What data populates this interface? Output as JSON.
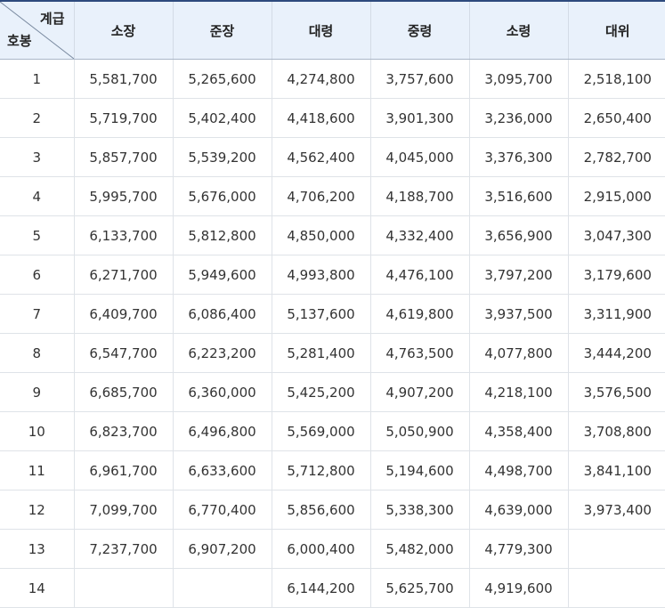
{
  "table": {
    "corner_top": "계급",
    "corner_bottom": "호봉",
    "columns": [
      "소장",
      "준장",
      "대령",
      "중령",
      "소령",
      "대위"
    ],
    "rows": [
      {
        "step": "1",
        "cells": [
          "5,581,700",
          "5,265,600",
          "4,274,800",
          "3,757,600",
          "3,095,700",
          "2,518,100"
        ]
      },
      {
        "step": "2",
        "cells": [
          "5,719,700",
          "5,402,400",
          "4,418,600",
          "3,901,300",
          "3,236,000",
          "2,650,400"
        ]
      },
      {
        "step": "3",
        "cells": [
          "5,857,700",
          "5,539,200",
          "4,562,400",
          "4,045,000",
          "3,376,300",
          "2,782,700"
        ]
      },
      {
        "step": "4",
        "cells": [
          "5,995,700",
          "5,676,000",
          "4,706,200",
          "4,188,700",
          "3,516,600",
          "2,915,000"
        ]
      },
      {
        "step": "5",
        "cells": [
          "6,133,700",
          "5,812,800",
          "4,850,000",
          "4,332,400",
          "3,656,900",
          "3,047,300"
        ]
      },
      {
        "step": "6",
        "cells": [
          "6,271,700",
          "5,949,600",
          "4,993,800",
          "4,476,100",
          "3,797,200",
          "3,179,600"
        ]
      },
      {
        "step": "7",
        "cells": [
          "6,409,700",
          "6,086,400",
          "5,137,600",
          "4,619,800",
          "3,937,500",
          "3,311,900"
        ]
      },
      {
        "step": "8",
        "cells": [
          "6,547,700",
          "6,223,200",
          "5,281,400",
          "4,763,500",
          "4,077,800",
          "3,444,200"
        ]
      },
      {
        "step": "9",
        "cells": [
          "6,685,700",
          "6,360,000",
          "5,425,200",
          "4,907,200",
          "4,218,100",
          "3,576,500"
        ]
      },
      {
        "step": "10",
        "cells": [
          "6,823,700",
          "6,496,800",
          "5,569,000",
          "5,050,900",
          "4,358,400",
          "3,708,800"
        ]
      },
      {
        "step": "11",
        "cells": [
          "6,961,700",
          "6,633,600",
          "5,712,800",
          "5,194,600",
          "4,498,700",
          "3,841,100"
        ]
      },
      {
        "step": "12",
        "cells": [
          "7,099,700",
          "6,770,400",
          "5,856,600",
          "5,338,300",
          "4,639,000",
          "3,973,400"
        ]
      },
      {
        "step": "13",
        "cells": [
          "7,237,700",
          "6,907,200",
          "6,000,400",
          "5,482,000",
          "4,779,300",
          ""
        ]
      },
      {
        "step": "14",
        "cells": [
          "",
          "",
          "6,144,200",
          "5,625,700",
          "4,919,600",
          ""
        ]
      }
    ]
  }
}
